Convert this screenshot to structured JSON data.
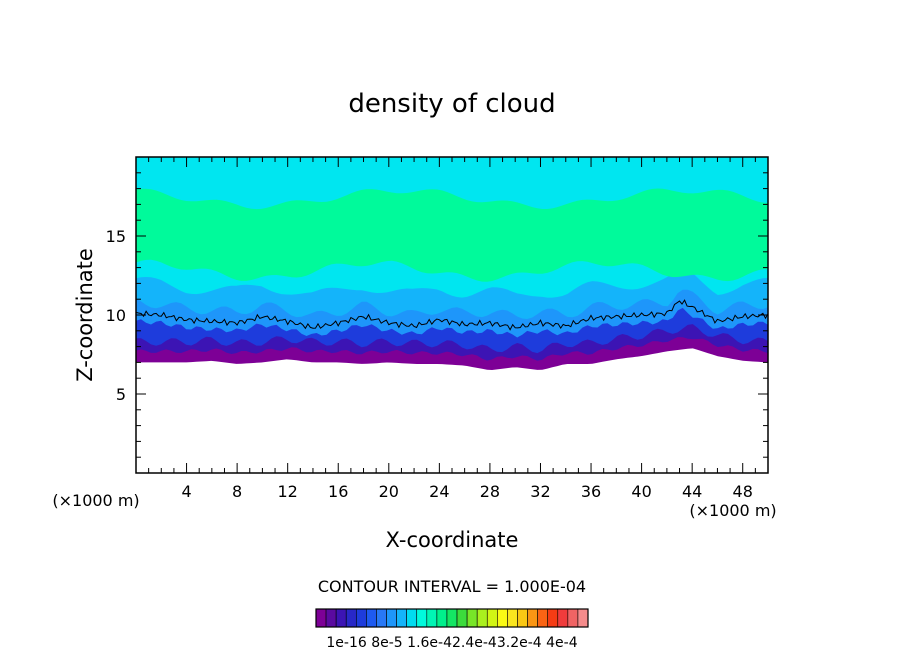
{
  "chart_data": {
    "type": "heatmap",
    "title": "density of cloud",
    "xlabel": "X-coordinate",
    "ylabel": "Z-coordinate",
    "x_unit": "(×1000 m)",
    "z_unit": "(×1000 m)",
    "xlim": [
      0,
      50
    ],
    "ylim": [
      0,
      20
    ],
    "x_ticks": [
      4,
      8,
      12,
      16,
      20,
      24,
      28,
      32,
      36,
      40,
      44,
      48
    ],
    "y_ticks": [
      5,
      10,
      15
    ],
    "contour_interval_label": "CONTOUR INTERVAL = 1.000E-04",
    "colorbar_labels": [
      "1e-16",
      "8e-5",
      "1.6e-4",
      "2.4e-4",
      "3.2e-4",
      "4e-4"
    ],
    "colorbar_label_text": "1e-16 8e-5 1.6e-42.4e-43.2e-4 4e-4",
    "colorbar_colors": [
      "#7d0096",
      "#5a0aa0",
      "#3c14b4",
      "#2828c8",
      "#1e3cdc",
      "#1e5af0",
      "#2878f5",
      "#1e96fa",
      "#14b4fa",
      "#00dcf0",
      "#00fadc",
      "#00f5b4",
      "#00f08c",
      "#14e664",
      "#3cdc3c",
      "#78e628",
      "#aaf01e",
      "#d2f514",
      "#fafa14",
      "#fae61e",
      "#fac814",
      "#fa9614",
      "#fa6414",
      "#f53c14",
      "#f03c3c",
      "#f06464",
      "#f58c8c"
    ],
    "cloud_base_profile": {
      "x": [
        0,
        2,
        4,
        6,
        8,
        10,
        12,
        14,
        16,
        18,
        20,
        22,
        24,
        26,
        28,
        30,
        32,
        34,
        36,
        38,
        40,
        42,
        44,
        46,
        48,
        50
      ],
      "z": [
        7.0,
        7.0,
        7.0,
        7.1,
        6.9,
        7.0,
        7.2,
        7.0,
        7.0,
        6.9,
        7.0,
        6.9,
        6.9,
        6.8,
        6.5,
        6.7,
        6.5,
        6.9,
        6.9,
        7.2,
        7.4,
        7.7,
        7.9,
        7.4,
        7.1,
        7.0
      ]
    },
    "contour_line_profile": {
      "x": [
        0,
        2,
        4,
        6,
        8,
        10,
        12,
        14,
        16,
        18,
        20,
        22,
        24,
        26,
        28,
        30,
        32,
        34,
        36,
        38,
        40,
        42,
        43,
        44,
        46,
        48,
        50
      ],
      "z": [
        10.1,
        10.0,
        9.7,
        9.6,
        9.5,
        9.9,
        9.6,
        9.2,
        9.5,
        9.9,
        9.5,
        9.3,
        9.7,
        9.4,
        9.5,
        9.2,
        9.5,
        9.3,
        9.8,
        9.9,
        10.0,
        10.1,
        10.9,
        10.5,
        9.6,
        9.9,
        10.0
      ]
    },
    "layers": [
      {
        "name": "base",
        "color": "#7d0096"
      },
      {
        "name": "l2",
        "color": "#3c14b4"
      },
      {
        "name": "l3",
        "color": "#1e3cdc"
      },
      {
        "name": "l4",
        "color": "#1e96fa"
      },
      {
        "name": "l5",
        "color": "#14b4fa"
      },
      {
        "name": "l6",
        "color": "#00e6f0"
      },
      {
        "name": "core",
        "color": "#00fa9b"
      },
      {
        "name": "top",
        "color": "#00e6f0"
      }
    ],
    "grid": false
  }
}
